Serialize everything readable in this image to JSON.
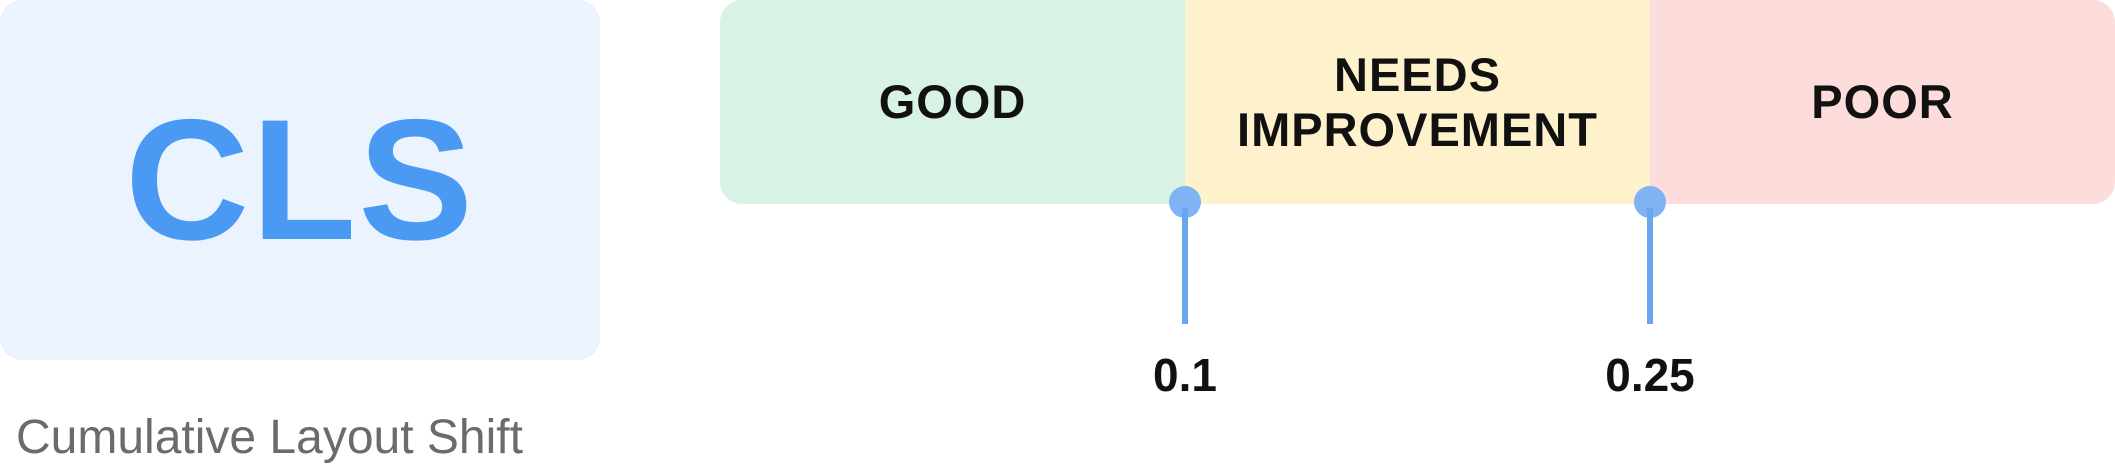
{
  "metric": {
    "abbreviation": "CLS",
    "full_name": "Cumulative Layout Shift"
  },
  "bands": [
    {
      "label": "GOOD",
      "color": "#d8f2e4"
    },
    {
      "label_line1": "NEEDS",
      "label_line2": "IMPROVEMENT",
      "color": "#fdf2cc"
    },
    {
      "label": "POOR",
      "color": "#fddcdc"
    }
  ],
  "thresholds": [
    {
      "value": "0.1"
    },
    {
      "value": "0.25"
    }
  ],
  "colors": {
    "accent": "#4a9af3",
    "marker": "#6aa6f0",
    "card_background": "#eaf3fe",
    "caption_text": "#6b6b6b"
  }
}
